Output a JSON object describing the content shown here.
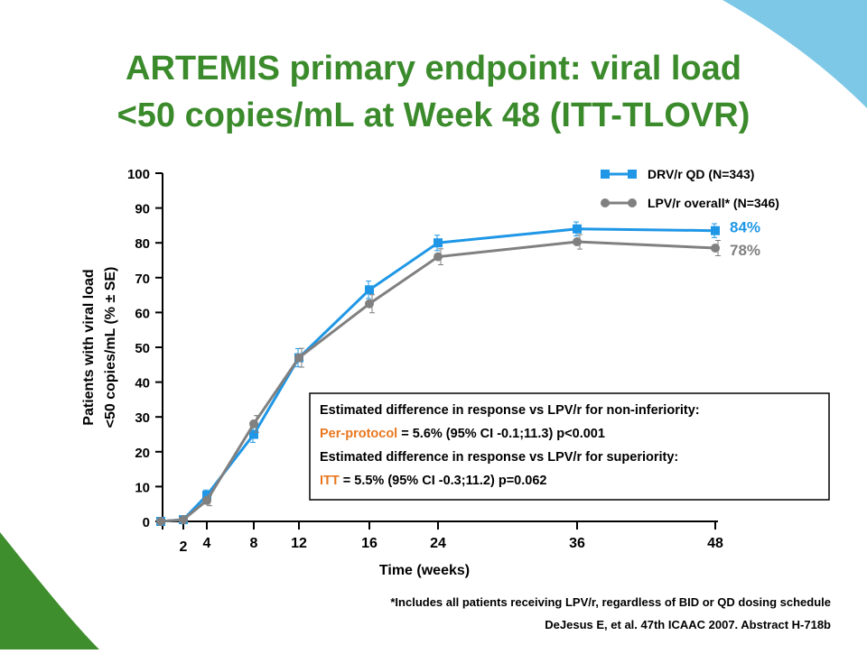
{
  "chart_data": {
    "type": "line",
    "title": [
      "ARTEMIS primary endpoint: viral load",
      "<50 copies/mL at Week 48 (ITT-TLOVR)"
    ],
    "title_color": "#3b8b2c",
    "x_label": "Time (weeks)",
    "y_label": [
      "Patients with viral load",
      "<50 copies/mL (% ± SE)"
    ],
    "categories": [
      null,
      "2",
      "4",
      "8",
      "12",
      "16",
      "24",
      "36",
      "48"
    ],
    "series": [
      {
        "name": "DRV/r QD (N=343)",
        "color": "#1f97e6",
        "marker": "square",
        "values": [
          0,
          0.5,
          7.5,
          25,
          47,
          66.5,
          80,
          84,
          83.5
        ],
        "errors": [
          0,
          0,
          1.5,
          2.3,
          2.6,
          2.5,
          2.2,
          2,
          2
        ],
        "value_labels": [
          null,
          null,
          null,
          null,
          null,
          null,
          null,
          null,
          "84%"
        ]
      },
      {
        "name": "LPV/r overall* (N=346)",
        "color": "#808080",
        "marker": "circle",
        "values": [
          0,
          0.5,
          6,
          28,
          47,
          62.5,
          76,
          80.3,
          78.5
        ],
        "errors": [
          0,
          0,
          1.5,
          2.4,
          2.7,
          2.6,
          2.3,
          2.1,
          2.2
        ],
        "value_labels": [
          null,
          null,
          null,
          null,
          null,
          null,
          null,
          null,
          "78%"
        ]
      }
    ],
    "ylim": [
      0,
      100
    ],
    "yticks": [
      0,
      10,
      20,
      30,
      40,
      50,
      60,
      70,
      80,
      90,
      100
    ],
    "annotation": [
      [
        {
          "text": "Estimated difference in response vs LPV/r for non-inferiority:",
          "color": "#000000"
        }
      ],
      [
        {
          "text": "Per-protocol",
          "color": "#e8771e"
        },
        {
          "text": " = 5.6% (95% CI -0.1;11.3) p<0.001",
          "color": "#000000"
        }
      ],
      [
        {
          "text": "Estimated difference in response vs LPV/r for superiority:",
          "color": "#000000"
        }
      ],
      [
        {
          "text": "ITT",
          "color": "#e8771e"
        },
        {
          "text": " = 5.5% (95% CI -0.3;11.2) p=0.062",
          "color": "#000000"
        }
      ]
    ],
    "footnote": "*Includes all patients receiving LPV/r, regardless of BID or QD dosing schedule",
    "citation": "DeJesus E, et al. 47th ICAAC 2007. Abstract H-718b"
  }
}
